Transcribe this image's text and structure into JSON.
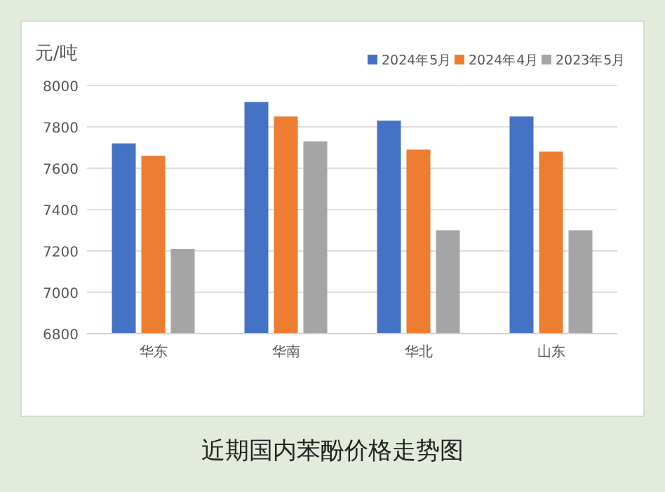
{
  "chart_data": {
    "type": "bar",
    "title": "近期国内苯酚价格走势图",
    "ylabel": "元/吨",
    "categories": [
      "华东",
      "华南",
      "华北",
      "山东"
    ],
    "series": [
      {
        "name": "2024年5月",
        "color": "#4472c4",
        "values": [
          7720,
          7920,
          7830,
          7850
        ]
      },
      {
        "name": "2024年4月",
        "color": "#ed7d31",
        "values": [
          7660,
          7850,
          7690,
          7680
        ]
      },
      {
        "name": "2023年5月",
        "color": "#a5a5a5",
        "values": [
          7210,
          7730,
          7300,
          7300
        ]
      }
    ],
    "ylim": [
      6800,
      8000
    ],
    "yticks": [
      6800,
      7000,
      7200,
      7400,
      7600,
      7800,
      8000
    ],
    "grid": "y",
    "legend": "top right"
  }
}
